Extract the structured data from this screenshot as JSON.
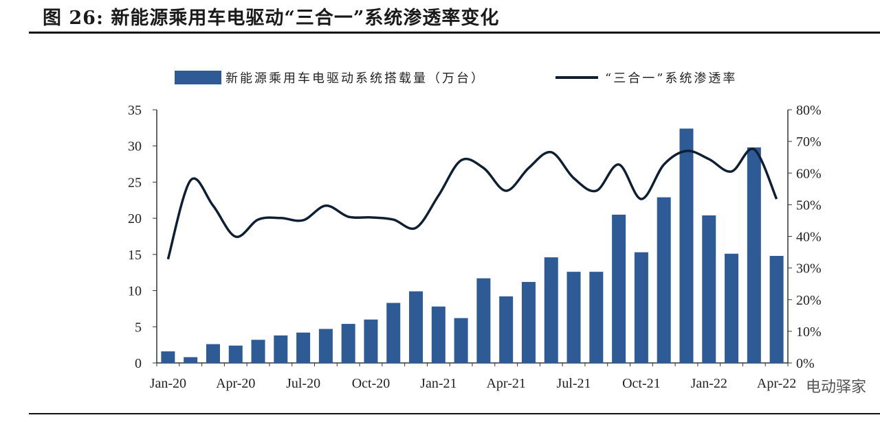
{
  "title": "图 26: 新能源乘用车电驱动“三合一”系统渗透率变化",
  "watermark": "电动驿家",
  "colors": {
    "bar": "#2e5a96",
    "line": "#0f1f33"
  },
  "chart_data": {
    "type": "bar+line",
    "legend_position": "top",
    "categories": [
      "Jan-20",
      "Feb-20",
      "Mar-20",
      "Apr-20",
      "May-20",
      "Jun-20",
      "Jul-20",
      "Aug-20",
      "Sep-20",
      "Oct-20",
      "Nov-20",
      "Dec-20",
      "Jan-21",
      "Feb-21",
      "Mar-21",
      "Apr-21",
      "May-21",
      "Jun-21",
      "Jul-21",
      "Aug-21",
      "Sep-21",
      "Oct-21",
      "Nov-21",
      "Dec-21",
      "Jan-22",
      "Feb-22",
      "Mar-22",
      "Apr-22"
    ],
    "x_tick_labels": [
      "Jan-20",
      "Apr-20",
      "Jul-20",
      "Oct-20",
      "Jan-21",
      "Apr-21",
      "Jul-21",
      "Oct-21",
      "Jan-22",
      "Apr-22"
    ],
    "series": [
      {
        "name": "新能源乘用车电驱动系统搭载量（万台）",
        "type": "bar",
        "axis": "left",
        "values": [
          1.6,
          0.8,
          2.6,
          2.4,
          3.2,
          3.8,
          4.2,
          4.7,
          5.4,
          6.0,
          8.3,
          9.9,
          7.8,
          6.2,
          11.7,
          9.2,
          11.2,
          14.6,
          12.6,
          12.6,
          20.5,
          15.3,
          22.9,
          32.4,
          20.4,
          15.1,
          29.8,
          14.8
        ]
      },
      {
        "name": "“三合一”系统渗透率",
        "type": "line",
        "axis": "right",
        "values": [
          32.8,
          57.7,
          49.7,
          39.9,
          45.3,
          45.8,
          45.1,
          49.7,
          46.2,
          46.0,
          45.3,
          42.7,
          52.9,
          64.0,
          61.6,
          54.4,
          61.6,
          66.6,
          58.4,
          54.4,
          62.7,
          51.8,
          62.7,
          67.0,
          64.4,
          60.5,
          67.5,
          51.8
        ]
      }
    ],
    "y_left": {
      "ylim": [
        0,
        35
      ],
      "ticks": [
        "0",
        "5",
        "10",
        "15",
        "20",
        "25",
        "30",
        "35"
      ]
    },
    "y_right": {
      "ylim": [
        0,
        80
      ],
      "ticks": [
        "0%",
        "10%",
        "20%",
        "30%",
        "40%",
        "50%",
        "60%",
        "70%",
        "80%"
      ]
    },
    "grid": false
  }
}
